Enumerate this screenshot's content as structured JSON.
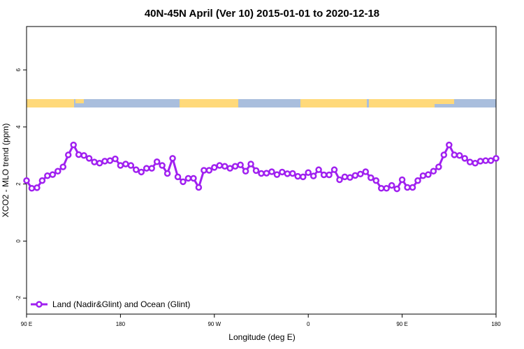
{
  "chart_data": {
    "type": "line",
    "title": "40N-45N April (Ver 10)   2015-01-01 to 2020-12-18",
    "x_label": "Longitude (deg E)",
    "y_label": "XCO2 - MLO trend (ppm)",
    "x": [
      90,
      95,
      100,
      105,
      110,
      115,
      120,
      125,
      130,
      135,
      140,
      145,
      150,
      155,
      160,
      165,
      170,
      175,
      180,
      185,
      190,
      195,
      200,
      205,
      210,
      215,
      220,
      225,
      230,
      235,
      240,
      245,
      250,
      255,
      260,
      265,
      270,
      275,
      280,
      285,
      290,
      295,
      300,
      305,
      310,
      315,
      320,
      325,
      330,
      335,
      340,
      345,
      350,
      355,
      360,
      365,
      370,
      375,
      380,
      385,
      390,
      395,
      400,
      405,
      410,
      415,
      420,
      425,
      430,
      435,
      440,
      445,
      450,
      455,
      460,
      465,
      470,
      475,
      480,
      485,
      490,
      495,
      500,
      505,
      510,
      515,
      520,
      525,
      530,
      535,
      540
    ],
    "series": [
      {
        "name": "Land (Nadir&Glint) and Ocean (Glint)",
        "color": "#a020f0",
        "values": [
          2.12,
          1.85,
          1.87,
          2.12,
          2.29,
          2.33,
          2.45,
          2.6,
          3.02,
          3.37,
          3.03,
          3.0,
          2.9,
          2.77,
          2.73,
          2.8,
          2.82,
          2.88,
          2.65,
          2.7,
          2.65,
          2.5,
          2.42,
          2.55,
          2.55,
          2.78,
          2.65,
          2.37,
          2.9,
          2.25,
          2.08,
          2.2,
          2.2,
          1.88,
          2.48,
          2.48,
          2.58,
          2.65,
          2.62,
          2.55,
          2.62,
          2.67,
          2.45,
          2.7,
          2.47,
          2.37,
          2.38,
          2.43,
          2.33,
          2.42,
          2.36,
          2.37,
          2.27,
          2.25,
          2.4,
          2.28,
          2.5,
          2.32,
          2.32,
          2.5,
          2.15,
          2.25,
          2.23,
          2.3,
          2.35,
          2.43,
          2.22,
          2.12,
          1.85,
          1.85,
          1.95,
          1.83,
          2.15,
          1.88,
          1.88,
          2.12,
          2.29,
          2.33,
          2.45,
          2.6,
          3.02,
          3.37,
          3.02,
          3.0,
          2.9,
          2.77,
          2.73,
          2.8,
          2.82,
          2.82,
          2.9
        ]
      }
    ],
    "xlim": [
      90,
      540
    ],
    "xticks": [
      {
        "value": 90,
        "label": "90 E"
      },
      180,
      {
        "value": 270,
        "label": "90 W"
      },
      {
        "value": 360,
        "label": "0"
      },
      {
        "value": 450,
        "label": "90 E"
      },
      {
        "value": 540,
        "label": "180"
      }
    ],
    "ylim": [
      -2.56,
      7.52
    ],
    "yticks": [
      -2,
      0,
      2,
      4,
      6
    ],
    "legend": "bottom-left"
  }
}
